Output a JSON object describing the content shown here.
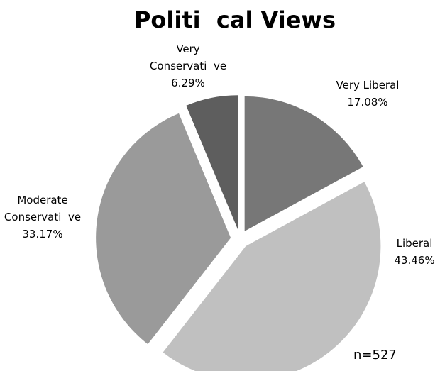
{
  "chart_data": {
    "type": "pie",
    "title": "Politi  cal Views",
    "slices": [
      {
        "label_lines": [
          "Very Liberal"
        ],
        "value": 17.08,
        "value_label": "17.08%",
        "color": "#777777"
      },
      {
        "label_lines": [
          "Liberal"
        ],
        "value": 43.46,
        "value_label": "43.46%",
        "color": "#c0c0c0"
      },
      {
        "label_lines": [
          "Moderate",
          "Conservati  ve"
        ],
        "value": 33.17,
        "value_label": "33.17%",
        "color": "#9a9a9a"
      },
      {
        "label_lines": [
          "Very",
          "Conservati  ve"
        ],
        "value": 6.29,
        "value_label": "6.29%",
        "color": "#5e5e5e"
      }
    ],
    "start_angle_deg": 0,
    "direction": "clockwise",
    "exploded": true,
    "legend": "none",
    "note": "n=527"
  }
}
